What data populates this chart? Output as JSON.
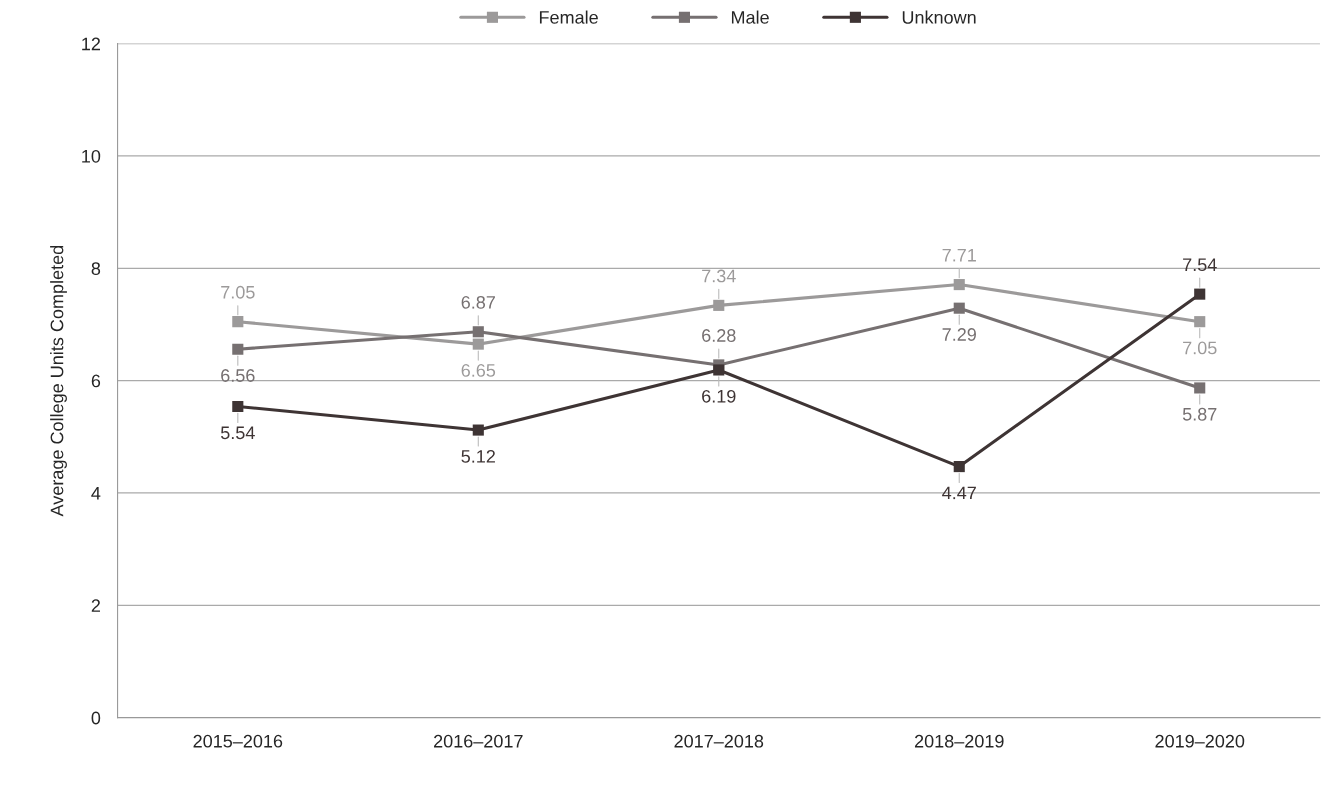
{
  "chart_data": {
    "type": "line",
    "ylabel": "Average College Units Completed",
    "categories": [
      "2015–2016",
      "2016–2017",
      "2017–2018",
      "2018–2019",
      "2019–2020"
    ],
    "series": [
      {
        "name": "Female",
        "color": "#9c9a9a",
        "values": [
          7.05,
          6.65,
          7.34,
          7.71,
          7.05
        ]
      },
      {
        "name": "Male",
        "color": "#767071",
        "values": [
          6.56,
          6.87,
          6.28,
          7.29,
          5.87
        ]
      },
      {
        "name": "Unknown",
        "color": "#3e3434",
        "values": [
          5.54,
          5.12,
          6.19,
          4.47,
          7.54
        ]
      }
    ],
    "ylim": [
      0,
      12
    ],
    "yticks": [
      0,
      2,
      4,
      6,
      8,
      10,
      12
    ],
    "grid": "y",
    "legend": "top",
    "marker": "square",
    "line_style": "solid",
    "data_labels": true
  }
}
